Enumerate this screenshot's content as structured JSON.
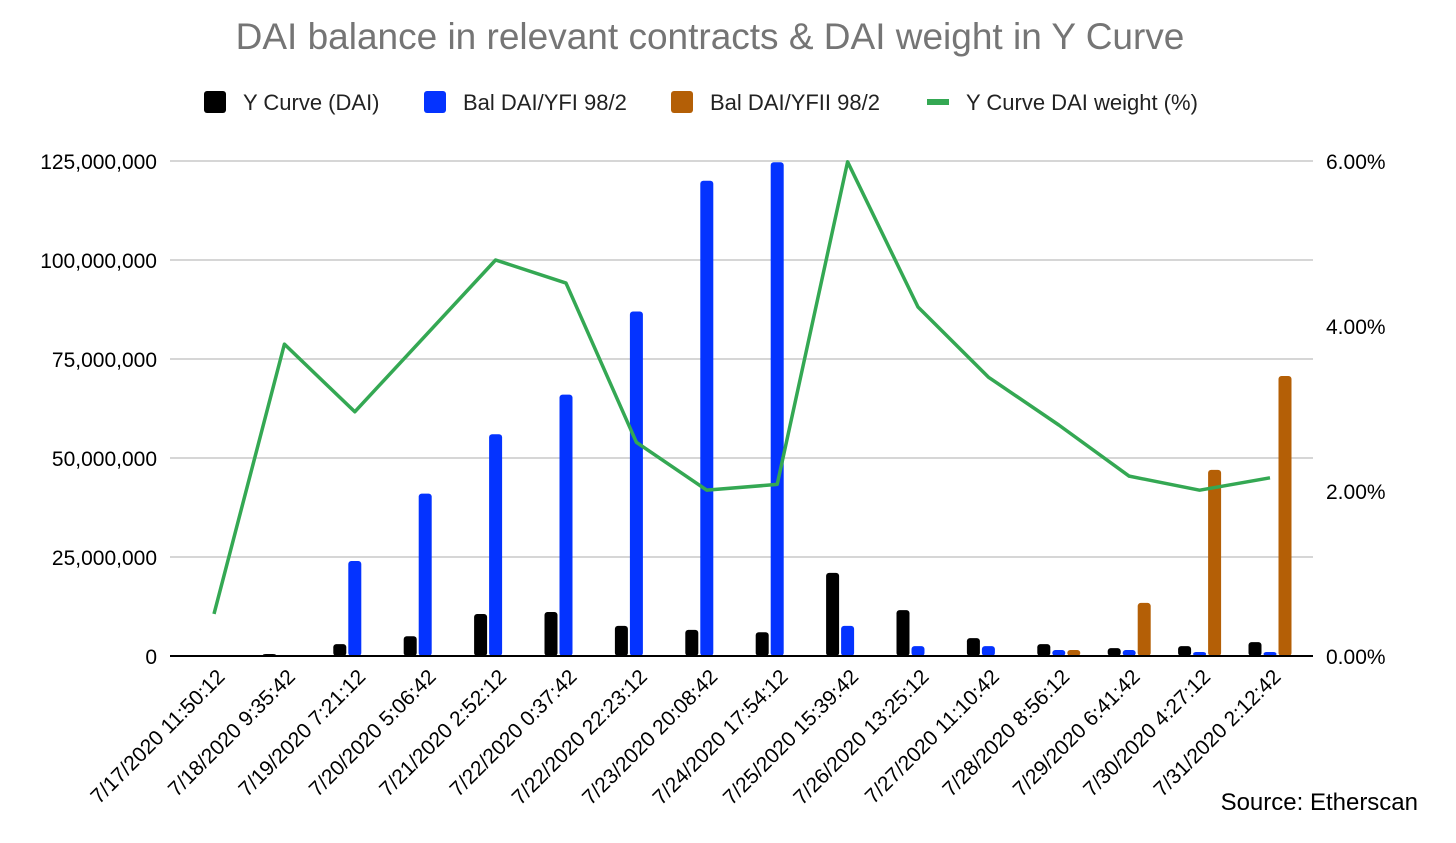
{
  "chart_data": {
    "type": "bar",
    "title": "DAI balance in relevant contracts & DAI weight in Y Curve",
    "source": "Source: Etherscan",
    "categories": [
      "7/17/2020 11:50:12",
      "7/18/2020 9:35:42",
      "7/19/2020 7:21:12",
      "7/20/2020 5:06:42",
      "7/21/2020 2:52:12",
      "7/22/2020 0:37:42",
      "7/22/2020 22:23:12",
      "7/23/2020 20:08:42",
      "7/24/2020 17:54:12",
      "7/25/2020 15:39:42",
      "7/26/2020 13:25:12",
      "7/27/2020 11:10:42",
      "7/28/2020 8:56:12",
      "7/29/2020 6:41:42",
      "7/30/2020 4:27:12",
      "7/31/2020 2:12:42"
    ],
    "series": [
      {
        "name": "Y Curve (DAI)",
        "type": "bar",
        "axis": "left",
        "color": "#000000",
        "values": [
          0,
          500000,
          3000000,
          5000000,
          10600000,
          11100000,
          7600000,
          6600000,
          6000000,
          21000000,
          11600000,
          4500000,
          3000000,
          2000000,
          2500000,
          3500000
        ]
      },
      {
        "name": "Bal DAI/YFI 98/2",
        "type": "bar",
        "axis": "left",
        "color": "#0433ff",
        "values": [
          0,
          0,
          24000000,
          41000000,
          56000000,
          66000000,
          87000000,
          120000000,
          124700000,
          7600000,
          2500000,
          2500000,
          1500000,
          1500000,
          1000000,
          1000000
        ]
      },
      {
        "name": "Bal DAI/YFII 98/2",
        "type": "bar",
        "axis": "left",
        "color": "#b45f06",
        "values": [
          0,
          0,
          0,
          0,
          0,
          0,
          0,
          0,
          0,
          0,
          0,
          0,
          1500000,
          13400000,
          47000000,
          70700000
        ]
      },
      {
        "name": "Y Curve DAI weight (%)",
        "type": "line",
        "axis": "right",
        "color": "#34a853",
        "values": [
          0.51,
          3.78,
          2.96,
          3.88,
          4.8,
          4.52,
          2.59,
          2.01,
          2.08,
          5.99,
          4.23,
          3.38,
          2.8,
          2.18,
          2.01,
          2.16
        ]
      }
    ],
    "y_left": {
      "range": [
        0,
        125000000
      ],
      "ticks": [
        "0",
        "25,000,000",
        "50,000,000",
        "75,000,000",
        "100,000,000",
        "125,000,000"
      ]
    },
    "y_right": {
      "range": [
        0,
        6
      ],
      "ticks": [
        "0.00%",
        "2.00%",
        "4.00%",
        "6.00%"
      ]
    },
    "grid": true,
    "legend_position": "top"
  }
}
